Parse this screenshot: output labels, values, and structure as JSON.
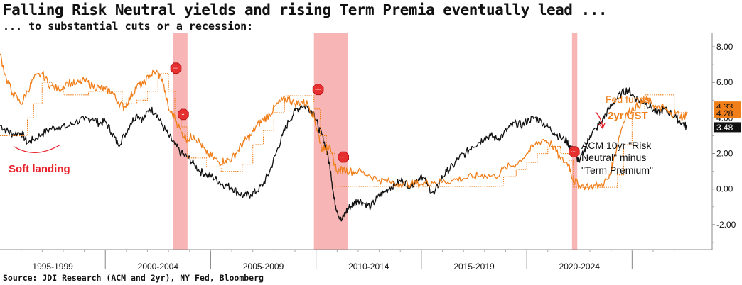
{
  "header": {
    "title": "Falling Risk Neutral yields and rising Term Premia eventually lead ...",
    "subtitle": "... to substantial cuts or a recession:"
  },
  "footer": {
    "source": "Source: JDI Research (ACM and 2yr), NY Fed, Bloomberg"
  },
  "colors": {
    "acm_line": "#111111",
    "ust2_line": "#f07f1a",
    "fedfunds_line": "#f07f1a",
    "recession_band": "#f7a8a8",
    "soft_landing": "#e8202a",
    "marker": "#e63030"
  },
  "chart_data": {
    "type": "line",
    "x_range": [
      1993.0,
      2026.8
    ],
    "ylim": [
      -3.4,
      8.8
    ],
    "y_ticks": [
      -2,
      0,
      2,
      4,
      6,
      8
    ],
    "y_tick_labels": [
      "-2.00",
      "0.00",
      "2.00",
      "4.00",
      "6.00",
      "8.00"
    ],
    "y_axis_side": "right",
    "x_category_labels": [
      {
        "label": "1995-1999",
        "range": [
          1993.0,
          1998.0
        ]
      },
      {
        "label": "2000-2004",
        "range": [
          1998.0,
          2003.0
        ]
      },
      {
        "label": "2005-2009",
        "range": [
          2003.0,
          2008.0
        ]
      },
      {
        "label": "2010-2014",
        "range": [
          2008.0,
          2013.0
        ]
      },
      {
        "label": "2015-2019",
        "range": [
          2013.0,
          2018.0
        ]
      },
      {
        "label": "2020-2024",
        "range": [
          2018.0,
          2023.0
        ]
      }
    ],
    "recessions": [
      [
        2001.2,
        2001.9
      ],
      [
        2007.9,
        2009.5
      ],
      [
        2020.15,
        2020.4
      ]
    ],
    "series": [
      {
        "name": "ACM 10yr \"Risk Neutral\" minus \"Term Premium\"",
        "style": "solid-black",
        "x": [
          1993.0,
          1993.3,
          1993.6,
          1994.0,
          1994.3,
          1994.6,
          1995.0,
          1995.4,
          1995.8,
          1996.2,
          1996.6,
          1997.0,
          1997.4,
          1997.7,
          1998.0,
          1998.3,
          1998.6,
          1998.9,
          1999.2,
          1999.5,
          1999.8,
          2000.1,
          2000.4,
          2000.7,
          2001.0,
          2001.3,
          2001.6,
          2001.9,
          2002.2,
          2002.5,
          2002.8,
          2003.1,
          2003.4,
          2003.7,
          2004.0,
          2004.3,
          2004.6,
          2004.9,
          2005.2,
          2005.5,
          2005.8,
          2006.1,
          2006.4,
          2006.7,
          2007.0,
          2007.3,
          2007.6,
          2007.9,
          2008.1,
          2008.3,
          2008.5,
          2008.7,
          2008.85,
          2009.0,
          2009.2,
          2009.4,
          2009.6,
          2009.8,
          2010.0,
          2010.3,
          2010.6,
          2010.9,
          2011.2,
          2011.5,
          2011.8,
          2012.1,
          2012.4,
          2012.7,
          2013.0,
          2013.3,
          2013.6,
          2013.9,
          2014.2,
          2014.5,
          2014.8,
          2015.1,
          2015.4,
          2015.7,
          2016.0,
          2016.3,
          2016.6,
          2016.9,
          2017.2,
          2017.5,
          2017.8,
          2018.1,
          2018.4,
          2018.7,
          2019.0,
          2019.3,
          2019.6,
          2019.9,
          2020.1,
          2020.3,
          2020.5,
          2020.8,
          2021.0,
          2021.3,
          2021.6,
          2021.9,
          2022.2,
          2022.5,
          2022.8,
          2023.0,
          2023.3,
          2023.6,
          2023.9,
          2024.2,
          2024.5,
          2024.8,
          2025.1,
          2025.4,
          2025.6
        ],
        "y": [
          3.6,
          3.3,
          3.1,
          3.2,
          2.6,
          2.8,
          3.1,
          3.4,
          3.5,
          3.5,
          3.8,
          3.9,
          4.0,
          3.7,
          3.8,
          3.2,
          2.5,
          3.0,
          3.7,
          4.2,
          3.9,
          4.5,
          4.3,
          3.6,
          3.0,
          2.5,
          2.0,
          1.8,
          1.4,
          1.0,
          0.8,
          0.7,
          0.4,
          0.2,
          0.1,
          -0.2,
          -0.4,
          -0.3,
          -0.1,
          0.3,
          1.0,
          2.0,
          3.0,
          3.8,
          4.4,
          4.7,
          4.6,
          4.3,
          3.5,
          3.0,
          2.2,
          1.0,
          -0.5,
          -1.2,
          -1.8,
          -1.3,
          -1.0,
          -0.8,
          -0.6,
          -0.8,
          -1.0,
          -0.5,
          -0.2,
          0.1,
          0.3,
          0.5,
          0.2,
          0.4,
          0.8,
          0.2,
          -0.3,
          0.5,
          1.0,
          1.3,
          1.8,
          2.0,
          2.4,
          2.6,
          2.9,
          3.0,
          2.8,
          3.1,
          3.5,
          3.7,
          3.6,
          3.9,
          4.0,
          3.8,
          3.5,
          3.2,
          2.9,
          2.7,
          2.3,
          2.0,
          1.5,
          2.4,
          3.0,
          3.4,
          3.9,
          4.5,
          5.0,
          5.4,
          5.6,
          5.3,
          5.0,
          4.9,
          4.6,
          4.2,
          4.5,
          4.3,
          4.0,
          3.7,
          3.48
        ]
      },
      {
        "name": "2yr UST",
        "style": "solid-orange",
        "x": [
          1993.0,
          1993.3,
          1993.6,
          1994.0,
          1994.3,
          1994.6,
          1995.0,
          1995.4,
          1995.8,
          1996.2,
          1996.6,
          1997.0,
          1997.4,
          1997.7,
          1998.0,
          1998.3,
          1998.6,
          1998.9,
          1999.2,
          1999.5,
          1999.8,
          2000.1,
          2000.4,
          2000.7,
          2001.0,
          2001.3,
          2001.6,
          2001.9,
          2002.2,
          2002.5,
          2002.8,
          2003.1,
          2003.4,
          2003.7,
          2004.0,
          2004.3,
          2004.6,
          2004.9,
          2005.2,
          2005.5,
          2005.8,
          2006.1,
          2006.4,
          2006.7,
          2007.0,
          2007.3,
          2007.6,
          2007.9,
          2008.1,
          2008.3,
          2008.5,
          2008.7,
          2009.0,
          2009.3,
          2009.6,
          2010.0,
          2010.5,
          2011.0,
          2011.5,
          2012.0,
          2012.5,
          2013.0,
          2013.5,
          2014.0,
          2014.5,
          2015.0,
          2015.5,
          2016.0,
          2016.5,
          2017.0,
          2017.5,
          2018.0,
          2018.4,
          2018.8,
          2019.2,
          2019.6,
          2020.0,
          2020.2,
          2020.5,
          2021.0,
          2021.5,
          2021.9,
          2022.1,
          2022.4,
          2022.7,
          2023.0,
          2023.3,
          2023.6,
          2023.9,
          2024.2,
          2024.5,
          2024.8,
          2025.1,
          2025.4,
          2025.6
        ],
        "y": [
          7.6,
          6.2,
          5.4,
          4.8,
          5.5,
          6.2,
          6.5,
          5.8,
          5.6,
          6.0,
          5.9,
          6.1,
          5.8,
          5.7,
          5.6,
          5.5,
          4.9,
          4.6,
          5.2,
          5.8,
          5.9,
          6.4,
          6.6,
          6.2,
          4.5,
          4.0,
          3.2,
          2.8,
          3.0,
          2.6,
          2.0,
          1.8,
          1.5,
          1.6,
          1.7,
          2.2,
          2.7,
          3.0,
          3.6,
          3.9,
          4.2,
          4.7,
          5.0,
          5.1,
          4.8,
          4.9,
          4.8,
          4.1,
          3.1,
          2.2,
          2.5,
          2.1,
          1.0,
          1.1,
          1.0,
          1.0,
          0.8,
          0.5,
          0.4,
          0.3,
          0.3,
          0.3,
          0.4,
          0.4,
          0.5,
          0.6,
          0.7,
          0.8,
          0.7,
          1.2,
          1.4,
          2.0,
          2.5,
          2.8,
          2.5,
          1.7,
          1.4,
          0.5,
          0.2,
          0.15,
          0.2,
          0.6,
          1.5,
          3.0,
          4.2,
          4.5,
          4.7,
          5.0,
          4.9,
          4.5,
          4.6,
          4.2,
          4.3,
          4.0,
          4.28
        ]
      },
      {
        "name": "Fed funds",
        "style": "dotted-orange",
        "x": [
          1993.0,
          1994.0,
          1994.3,
          1994.6,
          1995.0,
          1995.5,
          1996.0,
          1997.2,
          1998.8,
          1999.0,
          1999.5,
          2000.0,
          2000.5,
          2001.0,
          2001.3,
          2001.6,
          2001.9,
          2002.8,
          2003.5,
          2004.5,
          2005.0,
          2005.5,
          2006.0,
          2006.5,
          2007.6,
          2007.9,
          2008.2,
          2008.5,
          2008.9,
          2015.9,
          2016.9,
          2017.5,
          2018.0,
          2018.5,
          2019.0,
          2019.6,
          2020.0,
          2020.2,
          2022.1,
          2022.3,
          2022.6,
          2023.0,
          2023.6,
          2024.7,
          2025.0,
          2025.6
        ],
        "y": [
          3.0,
          3.0,
          4.0,
          4.8,
          6.0,
          5.8,
          5.3,
          5.5,
          4.8,
          4.8,
          5.0,
          5.5,
          6.5,
          5.5,
          4.0,
          3.5,
          1.75,
          1.25,
          1.0,
          1.4,
          2.5,
          3.3,
          4.3,
          5.25,
          5.25,
          4.5,
          3.0,
          2.0,
          0.15,
          0.15,
          0.7,
          1.1,
          1.5,
          2.0,
          2.4,
          2.0,
          1.6,
          0.1,
          0.1,
          0.8,
          2.5,
          4.3,
          5.3,
          5.3,
          4.3,
          4.3
        ]
      }
    ],
    "last_value_labels": [
      {
        "series": "ACM 10yr \"Risk Neutral\" minus \"Term Premium\"",
        "text": "3.48",
        "value": 3.48
      },
      {
        "series": "2yr UST",
        "text": "4.28",
        "value": 4.28
      },
      {
        "series": "Fed funds",
        "text": "4.33",
        "value": 4.33
      }
    ],
    "annotations": [
      {
        "text": "Soft landing",
        "color": "#e8202a"
      },
      {
        "text": "Fed funds",
        "color": "#f07f1a"
      },
      {
        "text": "2yr UST",
        "color": "#f07f1a",
        "bold": true
      },
      {
        "lines": [
          "ACM 10yr \"Risk",
          "Neutral\" minus",
          "\"Term Premium\""
        ],
        "color": "#111111"
      }
    ],
    "event_markers": [
      {
        "x": 2001.35,
        "y": 6.8,
        "label": "mkr"
      },
      {
        "x": 2001.7,
        "y": 4.2,
        "label": "mkr"
      },
      {
        "x": 2008.1,
        "y": 5.6,
        "label": "mkr"
      },
      {
        "x": 2009.3,
        "y": 1.8,
        "label": "mkr"
      },
      {
        "x": 2020.25,
        "y": 2.1,
        "label": "mkr"
      }
    ]
  }
}
